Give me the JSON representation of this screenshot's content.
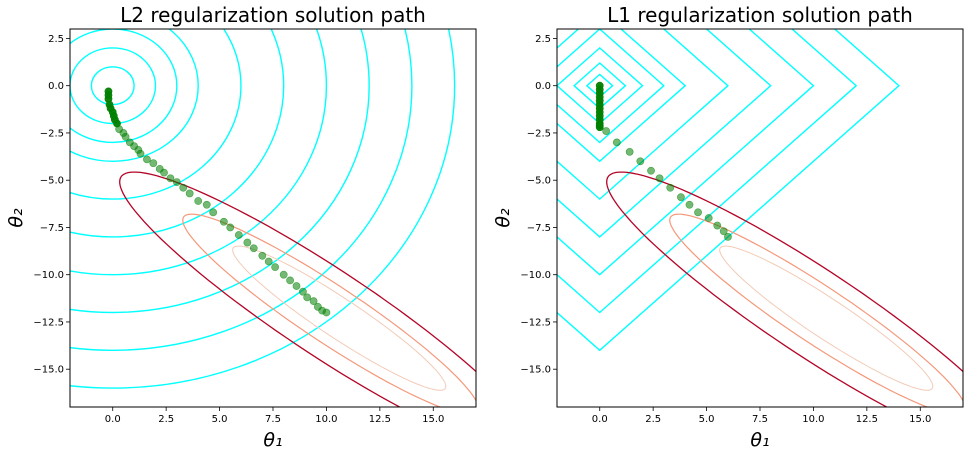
{
  "chart_data": [
    {
      "type": "scatter",
      "title": "L2 regularization solution path",
      "xlabel": "θ₁",
      "ylabel": "θ₂",
      "xlim": [
        -2,
        17
      ],
      "ylim": [
        -17,
        3
      ],
      "xticks": [
        0.0,
        2.5,
        5.0,
        7.5,
        10.0,
        12.5,
        15.0
      ],
      "xtick_labels": [
        "0.0",
        "2.5",
        "5.0",
        "7.5",
        "10.0",
        "12.5",
        "15.0"
      ],
      "yticks": [
        2.5,
        0.0,
        -2.5,
        -5.0,
        -7.5,
        -10.0,
        -12.5,
        -15.0
      ],
      "ytick_labels": [
        "2.5",
        "0.0",
        "−2.5",
        "−5.0",
        "−7.5",
        "−10.0",
        "−12.5",
        "−15.0"
      ],
      "regularizer_contours": {
        "shape": "circle",
        "center": [
          0,
          0
        ],
        "levels": [
          1,
          2,
          3,
          4,
          6,
          8,
          10,
          12,
          14,
          16
        ],
        "color": "#00ffff"
      },
      "loss_contours": {
        "center": [
          10,
          -12
        ],
        "colors": [
          "#b40426",
          "#f4987a",
          "#f2cbb7"
        ]
      },
      "solution_path": {
        "x": [
          -0.2,
          -0.2,
          -0.2,
          -0.15,
          -0.1,
          0.0,
          0.05,
          0.1,
          0.2,
          0.3,
          0.5,
          0.6,
          0.8,
          1.0,
          1.2,
          1.3,
          1.6,
          1.9,
          2.2,
          2.4,
          2.7,
          3.0,
          3.3,
          3.6,
          4.0,
          4.4,
          4.7,
          5.2,
          5.5,
          5.9,
          6.3,
          6.6,
          7.0,
          7.3,
          7.6,
          8.0,
          8.3,
          8.6,
          8.9,
          9.1,
          9.4,
          9.6,
          9.8,
          10.0
        ],
        "y": [
          -0.3,
          -0.5,
          -0.7,
          -1.0,
          -1.2,
          -1.4,
          -1.6,
          -1.8,
          -2.0,
          -2.3,
          -2.5,
          -2.7,
          -3.0,
          -3.2,
          -3.4,
          -3.6,
          -3.9,
          -4.1,
          -4.4,
          -4.6,
          -4.9,
          -5.1,
          -5.4,
          -5.7,
          -6.1,
          -6.3,
          -6.7,
          -7.2,
          -7.5,
          -7.9,
          -8.3,
          -8.6,
          -9.0,
          -9.3,
          -9.6,
          -10.0,
          -10.3,
          -10.6,
          -10.9,
          -11.2,
          -11.4,
          -11.7,
          -11.9,
          -12.0
        ],
        "color": "#008000"
      }
    },
    {
      "type": "scatter",
      "title": "L1 regularization solution path",
      "xlabel": "θ₁",
      "ylabel": "θ₂",
      "xlim": [
        -2,
        17
      ],
      "ylim": [
        -17,
        3
      ],
      "xticks": [
        0.0,
        2.5,
        5.0,
        7.5,
        10.0,
        12.5,
        15.0
      ],
      "xtick_labels": [
        "0.0",
        "2.5",
        "5.0",
        "7.5",
        "10.0",
        "12.5",
        "15.0"
      ],
      "yticks": [
        2.5,
        0.0,
        -2.5,
        -5.0,
        -7.5,
        -10.0,
        -12.5,
        -15.0
      ],
      "ytick_labels": [
        "2.5",
        "0.0",
        "−2.5",
        "−5.0",
        "−7.5",
        "−10.0",
        "−12.5",
        "−15.0"
      ],
      "regularizer_contours": {
        "shape": "diamond",
        "center": [
          0,
          0
        ],
        "levels": [
          0.6,
          1.2,
          2,
          3,
          4,
          6,
          8,
          10,
          12,
          14
        ],
        "color": "#00ffff"
      },
      "loss_contours": {
        "center": [
          10,
          -12
        ],
        "colors": [
          "#b40426",
          "#f4987a",
          "#f2cbb7"
        ]
      },
      "solution_path": {
        "x": [
          0,
          0,
          0,
          0,
          0,
          0,
          0,
          0,
          0,
          0,
          0,
          0,
          0,
          0.3,
          0.8,
          1.4,
          1.9,
          2.4,
          2.8,
          3.3,
          3.8,
          4.2,
          4.6,
          5.1,
          5.5,
          5.8,
          6.0
        ],
        "y": [
          0,
          -0.2,
          -0.4,
          -0.6,
          -0.8,
          -1.0,
          -1.2,
          -1.4,
          -1.6,
          -1.8,
          -2.0,
          -2.1,
          -2.2,
          -2.4,
          -3.0,
          -3.5,
          -4.0,
          -4.5,
          -4.9,
          -5.4,
          -5.9,
          -6.3,
          -6.7,
          -7.0,
          -7.4,
          -7.7,
          -8.0
        ],
        "color": "#008000"
      }
    }
  ]
}
